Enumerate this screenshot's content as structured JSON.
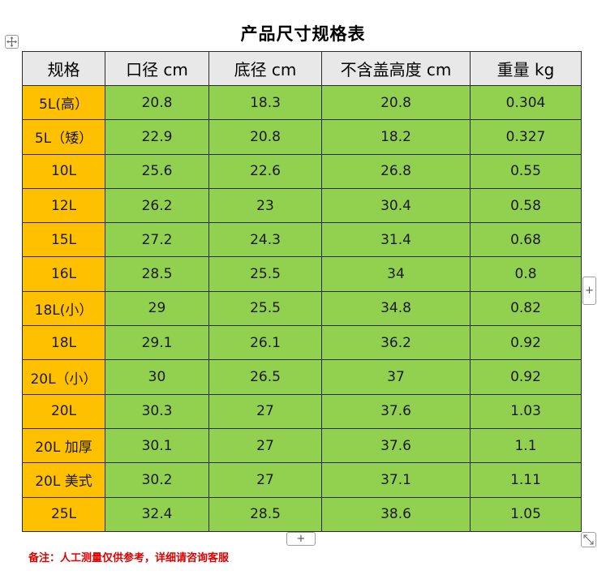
{
  "title": "产品尺寸规格表",
  "table": {
    "headers": [
      "规格",
      "口径 cm",
      "底径 cm",
      "不含盖高度 cm",
      "重量 kg"
    ],
    "rows": [
      [
        "5L(高）",
        "20.8",
        "18.3",
        "20.8",
        "0.304"
      ],
      [
        "5L（矮）",
        "22.9",
        "20.8",
        "18.2",
        "0.327"
      ],
      [
        "10L",
        "25.6",
        "22.6",
        "26.8",
        "0.55"
      ],
      [
        "12L",
        "26.2",
        "23",
        "30.4",
        "0.58"
      ],
      [
        "15L",
        "27.2",
        "24.3",
        "31.4",
        "0.68"
      ],
      [
        "16L",
        "28.5",
        "25.5",
        "34",
        "0.8"
      ],
      [
        "18L(小）",
        "29",
        "25.5",
        "34.8",
        "0.82"
      ],
      [
        "18L",
        "29.1",
        "26.1",
        "36.2",
        "0.92"
      ],
      [
        "20L（小）",
        "30",
        "26.5",
        "37",
        "0.92"
      ],
      [
        "20L",
        "30.3",
        "27",
        "37.6",
        "1.03"
      ],
      [
        "20L 加厚",
        "30.1",
        "27",
        "37.6",
        "1.1"
      ],
      [
        "20L 美式",
        "30.2",
        "27",
        "37.1",
        "1.11"
      ],
      [
        "25L",
        "32.4",
        "28.5",
        "38.6",
        "1.05"
      ]
    ]
  },
  "note": "备注：人工测量仅供参考，详细请咨询客服",
  "controls": {
    "add_column_label": "+",
    "add_row_label": "+"
  },
  "colors": {
    "header_bg": "#e8e8e8",
    "spec_cell_bg": "#ffc000",
    "data_cell_bg": "#92d050",
    "note_text": "#e00000"
  },
  "icons": {
    "table_move": "move-arrows-icon",
    "table_resize": "resize-diagonal-icon"
  }
}
